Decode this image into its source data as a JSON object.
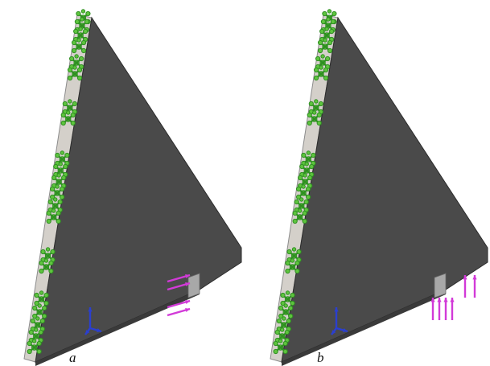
{
  "panels": [
    {
      "label": "a",
      "load_direction": "horizontal"
    },
    {
      "label": "b",
      "load_direction": "vertical"
    }
  ],
  "colors": {
    "background": "#ffffff",
    "face": "#4a4a4a",
    "edge_face": "#d4d0ca",
    "edge_stroke": "#8c8c8c",
    "fixture": "#5ec43e",
    "fixture_dark": "#2f8f22",
    "load": "#d23ad8",
    "triad": "#2b3fcf"
  },
  "icons": {
    "fixture": "fixed-geometry-anchor-icon",
    "load": "force-arrow-icon",
    "triad": "coordinate-triad-icon"
  }
}
